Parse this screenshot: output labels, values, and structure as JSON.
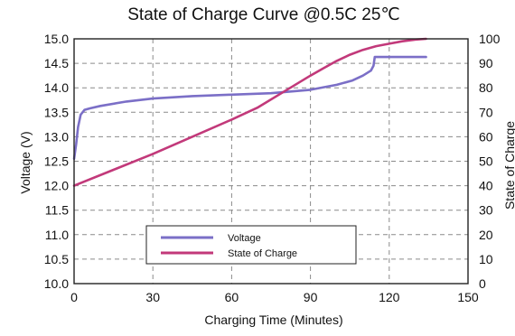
{
  "chart_data": {
    "type": "line",
    "title": "State of Charge Curve @0.5C 25℃",
    "xlabel": "Charging Time (Minutes)",
    "ylabel": "Voltage (V)",
    "y2label": "State of Charge",
    "xlim": [
      0,
      150
    ],
    "ylim": [
      10.0,
      15.0
    ],
    "y2lim": [
      0,
      100
    ],
    "xticks": [
      0,
      30,
      60,
      90,
      120,
      150
    ],
    "yticks": [
      "10.0",
      "10.5",
      "11.0",
      "11.5",
      "12.0",
      "12.5",
      "13.0",
      "13.5",
      "14.0",
      "14.5",
      "15.0"
    ],
    "y2ticks": [
      "0",
      "10",
      "20",
      "30",
      "40",
      "50",
      "60",
      "70",
      "80",
      "90",
      "100"
    ],
    "grid": true,
    "legend": "bottom-center",
    "series": [
      {
        "name": "Voltage",
        "axis": "left",
        "color": "#7b6fc7",
        "x": [
          0,
          0.8,
          1.5,
          2.5,
          4,
          6,
          10,
          20,
          30,
          45,
          60,
          75,
          90,
          100,
          106,
          110,
          113,
          114,
          114.5,
          118,
          126,
          134
        ],
        "y": [
          12.55,
          12.85,
          13.2,
          13.45,
          13.55,
          13.58,
          13.63,
          13.72,
          13.78,
          13.83,
          13.86,
          13.89,
          13.96,
          14.06,
          14.15,
          14.25,
          14.35,
          14.45,
          14.63,
          14.63,
          14.63,
          14.63
        ]
      },
      {
        "name": "State of Charge",
        "axis": "right",
        "color": "#c2397a",
        "x": [
          0,
          15,
          30,
          45,
          60,
          70,
          80,
          90,
          95,
          100,
          105,
          110,
          115,
          120,
          125,
          130,
          134
        ],
        "y": [
          40,
          46.5,
          53,
          60,
          67,
          72,
          78.5,
          85,
          88,
          91,
          93.5,
          95.5,
          97,
          98,
          99,
          99.7,
          100
        ]
      }
    ]
  }
}
